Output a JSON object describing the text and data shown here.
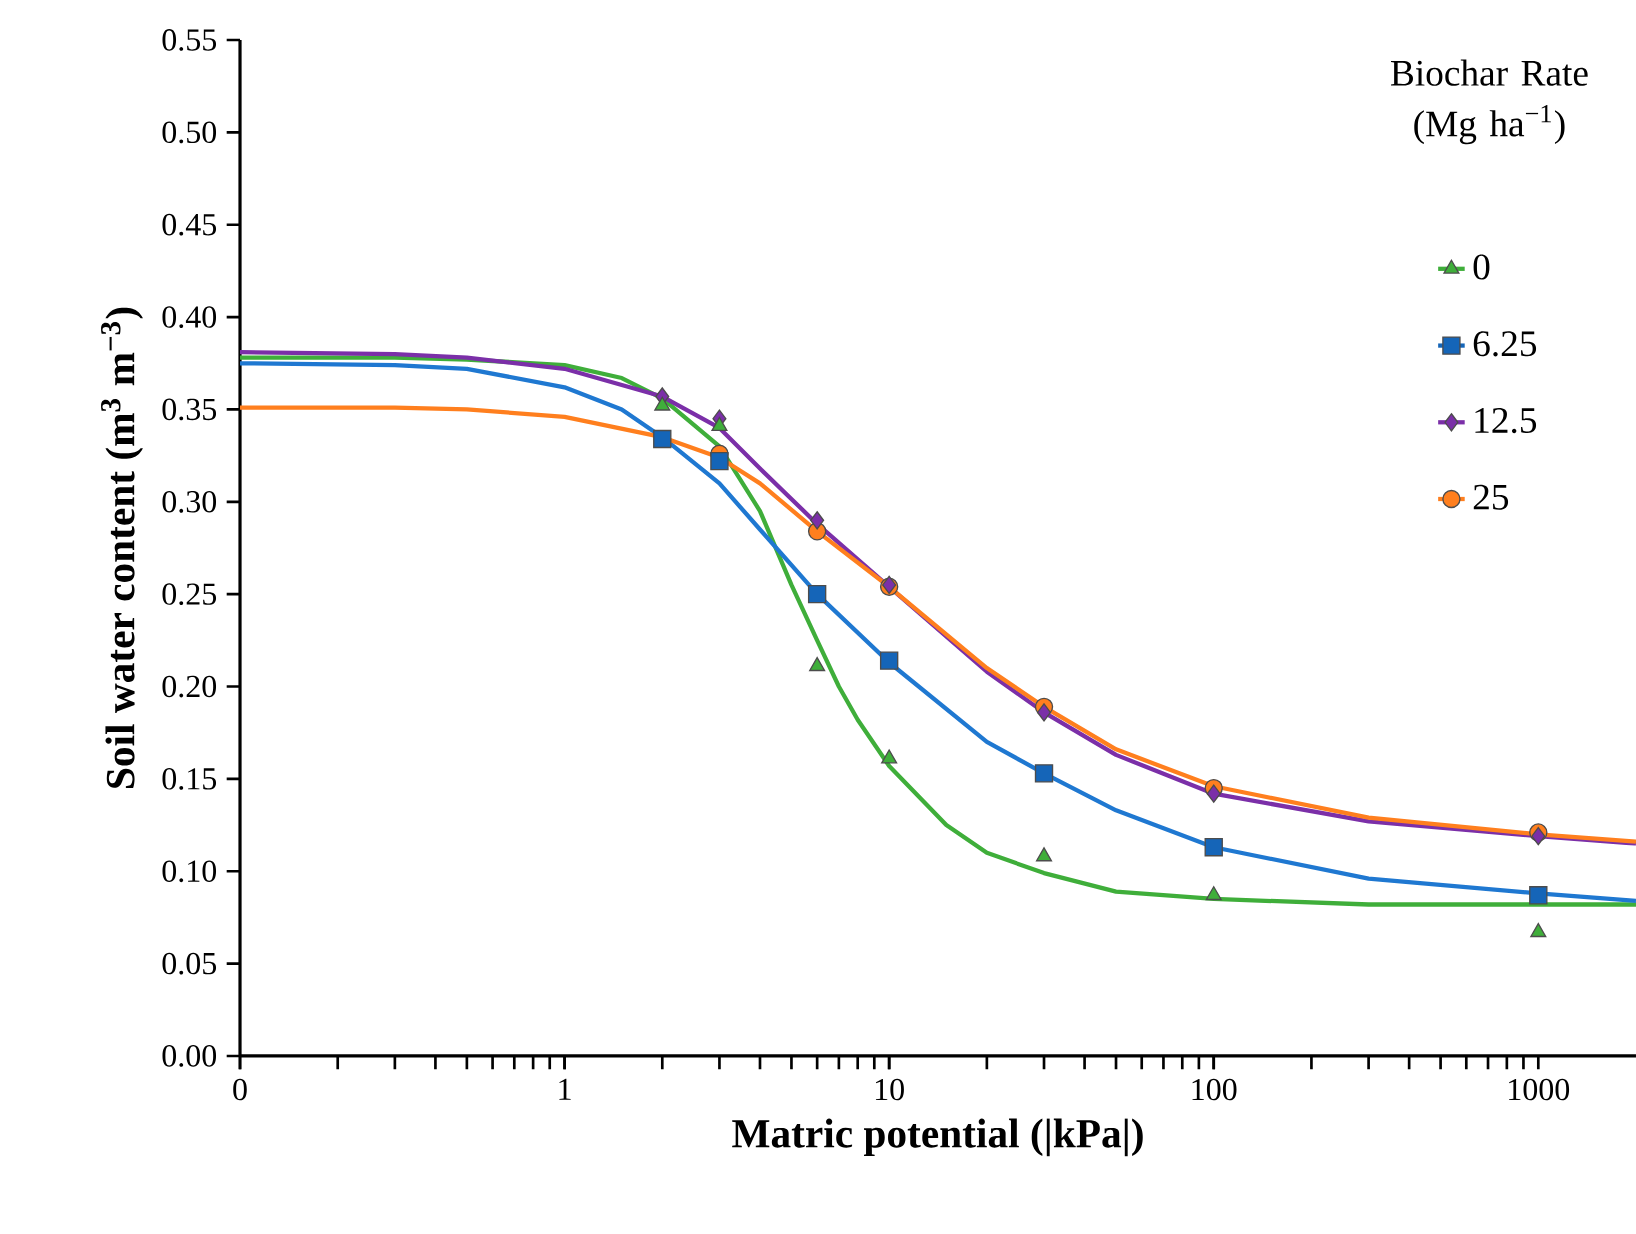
{
  "chart_data": {
    "type": "scatter",
    "xlabel": "Matric potential (|kPa|)",
    "ylabel": "Soil water content (m$^{3}$ m$^{−3}$)",
    "legend_title": "Biochar Rate (Mg ha$^{−1}$)",
    "log": "x",
    "legend": "top right",
    "xlim": [
      0.1,
      2000
    ],
    "xticks": [
      {
        "value": 0.1,
        "label": "0"
      },
      1,
      10,
      100,
      1000
    ],
    "ylim": [
      0,
      0.55
    ],
    "yticks": [
      {
        "value": 0,
        "label": "0.00"
      },
      {
        "value": 0.05,
        "label": "0.05"
      },
      {
        "value": 0.1,
        "label": "0.10"
      },
      {
        "value": 0.15,
        "label": "0.15"
      },
      {
        "value": 0.2,
        "label": "0.20"
      },
      {
        "value": 0.25,
        "label": "0.25"
      },
      {
        "value": 0.3,
        "label": "0.30"
      },
      {
        "value": 0.35,
        "label": "0.35"
      },
      {
        "value": 0.4,
        "label": "0.40"
      },
      {
        "value": 0.45,
        "label": "0.45"
      },
      {
        "value": 0.5,
        "label": "0.50"
      },
      {
        "value": 0.55,
        "label": "0.55"
      }
    ],
    "x": [
      2,
      3,
      6,
      10,
      30,
      100,
      1000
    ],
    "series": [
      {
        "type": "line",
        "color": "#3fae3a",
        "x": [
          0.1,
          0.3,
          0.5,
          1,
          1.5,
          2,
          3,
          4,
          5,
          6,
          7,
          8,
          10,
          15,
          20,
          30,
          50,
          100,
          300,
          1000,
          2000
        ],
        "values": [
          0.378,
          0.378,
          0.377,
          0.374,
          0.367,
          0.356,
          0.33,
          0.295,
          0.255,
          0.225,
          0.2,
          0.182,
          0.157,
          0.125,
          0.11,
          0.099,
          0.089,
          0.085,
          0.082,
          0.082,
          0.082
        ]
      },
      {
        "type": "line",
        "color": "#1f78d1",
        "x": [
          0.1,
          0.3,
          0.5,
          1,
          1.5,
          2,
          3,
          4,
          6,
          10,
          20,
          30,
          50,
          100,
          300,
          1000,
          2000
        ],
        "values": [
          0.375,
          0.374,
          0.372,
          0.362,
          0.35,
          0.335,
          0.31,
          0.285,
          0.25,
          0.213,
          0.17,
          0.153,
          0.133,
          0.113,
          0.096,
          0.088,
          0.084
        ]
      },
      {
        "type": "line",
        "color": "#7b2fa8",
        "x": [
          0.1,
          0.3,
          0.5,
          1,
          2,
          3,
          4,
          6,
          10,
          20,
          30,
          50,
          100,
          300,
          1000,
          2000
        ],
        "values": [
          0.381,
          0.38,
          0.378,
          0.372,
          0.357,
          0.34,
          0.318,
          0.288,
          0.254,
          0.208,
          0.186,
          0.163,
          0.142,
          0.127,
          0.119,
          0.115
        ]
      },
      {
        "type": "line",
        "color": "#ff7f1e",
        "x": [
          0.1,
          0.3,
          0.5,
          1,
          2,
          3,
          4,
          6,
          10,
          20,
          30,
          50,
          100,
          300,
          1000,
          2000
        ],
        "values": [
          0.351,
          0.351,
          0.35,
          0.346,
          0.335,
          0.324,
          0.31,
          0.284,
          0.254,
          0.21,
          0.189,
          0.166,
          0.146,
          0.129,
          0.12,
          0.116
        ]
      },
      {
        "name": "0",
        "color": "#3fae3a",
        "marker": "triangle",
        "values": [
          0.352,
          0.341,
          0.211,
          0.161,
          0.108,
          0.087,
          0.067
        ]
      },
      {
        "name": "6.25",
        "color": "#1565b8",
        "marker": "square",
        "values": [
          0.334,
          0.322,
          0.25,
          0.214,
          0.153,
          0.113,
          0.087
        ]
      },
      {
        "name": "12.5",
        "color": "#7b2fa8",
        "marker": "diamond",
        "values": [
          0.357,
          0.345,
          0.29,
          0.255,
          0.186,
          0.142,
          0.119
        ]
      },
      {
        "name": "25",
        "color": "#ff7f1e",
        "marker": "circle",
        "values": [
          null,
          0.326,
          0.284,
          0.254,
          0.189,
          0.145,
          0.121
        ]
      }
    ]
  }
}
